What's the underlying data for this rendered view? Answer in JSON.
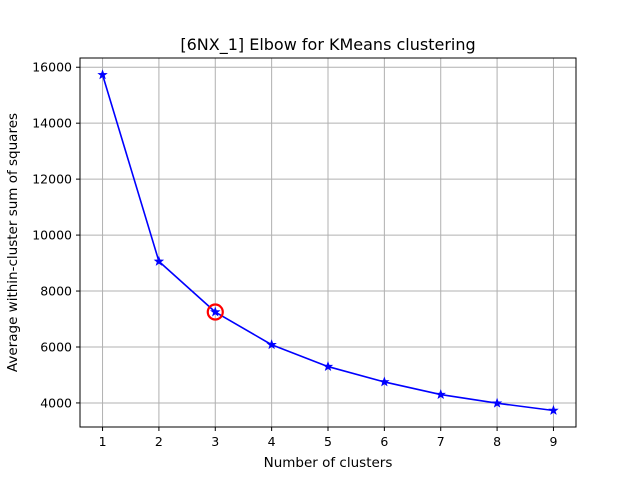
{
  "chart_data": {
    "type": "line",
    "title": "[6NX_1] Elbow for KMeans clustering",
    "xlabel": "Number of clusters",
    "ylabel": "Average within-cluster sum of squares",
    "x": [
      1,
      2,
      3,
      4,
      5,
      6,
      7,
      8,
      9
    ],
    "series": [
      {
        "values": [
          15730,
          9060,
          7250,
          6080,
          5300,
          4750,
          4300,
          3990,
          3730
        ]
      }
    ],
    "x_ticks": [
      "1",
      "2",
      "3",
      "4",
      "5",
      "6",
      "7",
      "8",
      "9"
    ],
    "y_ticks": [
      "4000",
      "6000",
      "8000",
      "10000",
      "12000",
      "14000",
      "16000"
    ],
    "xlim": [
      0.6,
      9.4
    ],
    "ylim": [
      3140,
      16330
    ],
    "grid": true,
    "marker": "star",
    "highlight": {
      "x": 3,
      "y": 7250,
      "marker": "open-circle"
    },
    "colors": {
      "line": "#0000ff",
      "highlight": "#ff0000",
      "grid": "#b0b0b0"
    }
  }
}
